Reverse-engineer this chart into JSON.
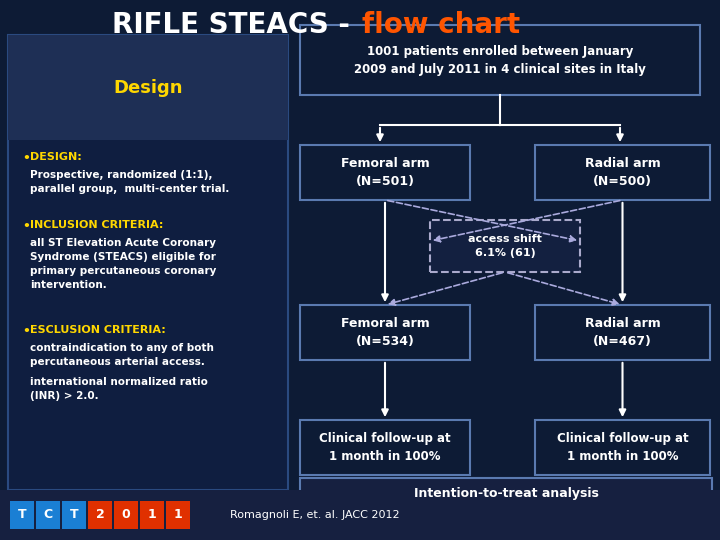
{
  "title_white": "RIFLE STEACS - ",
  "title_orange": "flow chart",
  "bg_color": "#0d1b35",
  "panel_color": "#0d1b35",
  "box_dark": "#0d1b35",
  "box_mid": "#162040",
  "box_header": "#1a2a50",
  "box_border": "#5a7ab0",
  "text_white": "#ffffff",
  "text_yellow": "#ffd700",
  "text_orange": "#ff5500",
  "design_label": "Design",
  "bullet1_title": "DESIGN:",
  "bullet1_body": "Prospective, randomized (1:1),\nparallel group,  multi-center trial.",
  "bullet2_title": "INCLUSION CRITERIA:",
  "bullet2_body": "all ST Elevation Acute Coronary\nSyndrome (STEACS) eligible for\nprimary percutaneous coronary\nintervention.",
  "bullet3_title": "ESCLUSION CRITERIA:",
  "bullet3_body": "contraindication to any of both\npercutaneous arterial access.",
  "bullet3_extra": "international normalized ratio\n(INR) > 2.0.",
  "enrolled_box": "1001 patients enrolled between January\n2009 and July 2011 in 4 clinical sites in Italy",
  "femoral1": "Femoral arm\n(N=501)",
  "radial1": "Radial arm\n(N=500)",
  "access_shift": "access shift\n6.1% (61)",
  "femoral2": "Femoral arm\n(N=534)",
  "radial2": "Radial arm\n(N=467)",
  "followup1": "Clinical follow-up at\n1 month in 100%",
  "followup2": "Clinical follow-up at\n1 month in 100%",
  "intention": "Intention-to-treat analysis",
  "footer_text": "Romagnoli E, et. al. JACC 2012",
  "tct_chars": [
    "T",
    "C",
    "T",
    "2",
    "0",
    "1",
    "1"
  ],
  "tct_colors": [
    "#1a7fd4",
    "#1a7fd4",
    "#1a7fd4",
    "#e03000",
    "#e03000",
    "#e03000",
    "#e03000"
  ]
}
